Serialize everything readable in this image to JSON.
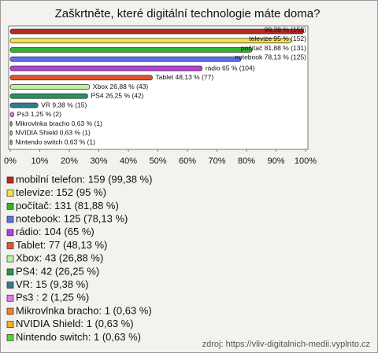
{
  "chart_data": {
    "type": "barh",
    "title": "Zaškrtněte, které digitální technologie máte doma?",
    "categories": [
      "mobilní telefon: 159 (99,38 %)",
      "televize: 152 (95 %)",
      "počítač: 131 (81,88 %)",
      "notebook: 125 (78,13 %)",
      "rádio: 104 (65 %)",
      "Tablet: 77 (48,13 %)",
      "Xbox: 43 (26,88 %)",
      "PS4: 42 (26,25 %)",
      "VR: 15 (9,38 %)",
      "Ps3 : 2 (1,25 %)",
      "Mikrovlnka bracho: 1 (0,63 %)",
      "NVIDIA Shield: 1 (0,63 %)",
      "Nintendo switch: 1 (0,63 %)"
    ],
    "values": [
      99.38,
      95,
      81.88,
      78.13,
      65,
      48.13,
      26.88,
      26.25,
      9.38,
      1.25,
      0.63,
      0.63,
      0.63
    ],
    "value_labels": [
      "99,38 % (159)",
      "televize 95 % (152)",
      "počítač 81,88 % (131)",
      "notebook 78,13 % (125)",
      "rádio 65 % (104)",
      "Tablet 48,13 % (77)",
      "Xbox 26,88 % (43)",
      "PS4 26,25 % (42)",
      "VR 9,38 % (15)",
      "Ps3  1,25 % (2)",
      "Mikrovlnka bracho 0,63 % (1)",
      "NVIDIA Shield 0,63 % (1)",
      "Nintendo switch 0,63 % (1)"
    ],
    "colors": [
      "#b8281e",
      "#f3e24c",
      "#2fb52f",
      "#5a6ff0",
      "#b540d4",
      "#e6522c",
      "#bfeea4",
      "#23945a",
      "#2a7e8e",
      "#e27ae6",
      "#e8842c",
      "#f2b124",
      "#4cd83d"
    ],
    "xlim": [
      0,
      100
    ],
    "xticks": [
      {
        "value": 0,
        "label": "0%"
      },
      {
        "value": 10,
        "label": "10%"
      },
      {
        "value": 20,
        "label": "20%"
      },
      {
        "value": 30,
        "label": "30%"
      },
      {
        "value": 40,
        "label": "40%"
      },
      {
        "value": 50,
        "label": "50%"
      },
      {
        "value": 60,
        "label": "60%"
      },
      {
        "value": 70,
        "label": "70%"
      },
      {
        "value": 80,
        "label": "80%"
      },
      {
        "value": 90,
        "label": "90%"
      },
      {
        "value": 100,
        "label": "100%"
      }
    ],
    "source": "zdroj: https://vliv-digitalnich-medii.vyplnto.cz"
  }
}
